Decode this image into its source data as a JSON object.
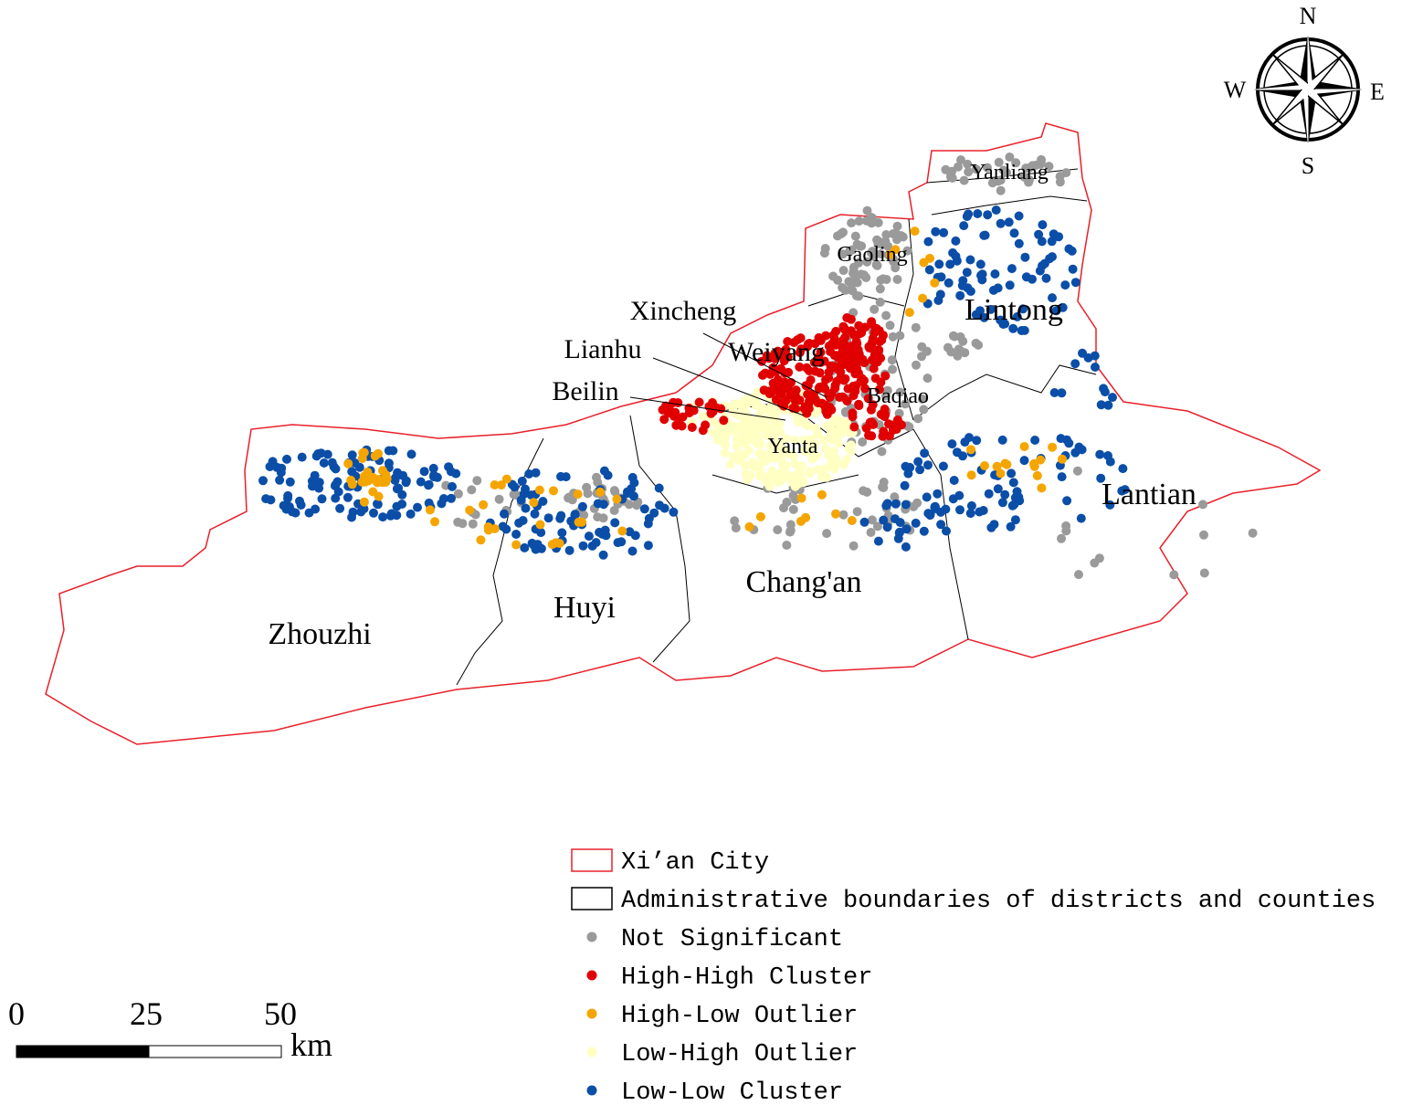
{
  "compass": {
    "north": "N",
    "south": "S",
    "east": "E",
    "west": "W"
  },
  "districts": [
    {
      "name": "Zhouzhi"
    },
    {
      "name": "Huyi"
    },
    {
      "name": "Chang'an"
    },
    {
      "name": "Lantian"
    },
    {
      "name": "Lintong"
    },
    {
      "name": "Xincheng"
    },
    {
      "name": "Lianhu"
    },
    {
      "name": "Beilin"
    },
    {
      "name": "Weiyang"
    },
    {
      "name": "Gaoling"
    },
    {
      "name": "Baqiao"
    },
    {
      "name": "Yanta"
    },
    {
      "name": "Yanliang"
    }
  ],
  "legend": [
    {
      "label": "Xi’an City",
      "color": "#e8202a"
    },
    {
      "label": "Administrative boundaries of districts and counties",
      "color": "#000000"
    },
    {
      "label": "Not Significant",
      "color": "#9a9a9a"
    },
    {
      "label": "High-High Cluster",
      "color": "#e00000"
    },
    {
      "label": "High-Low Outlier",
      "color": "#f5a500"
    },
    {
      "label": "Low-High Outlier",
      "color": "#ffffc4"
    },
    {
      "label": "Low-Low Cluster",
      "color": "#0b4ea8"
    }
  ],
  "scale_bar": {
    "ticks": [
      0,
      25,
      50
    ],
    "unit": "km"
  }
}
